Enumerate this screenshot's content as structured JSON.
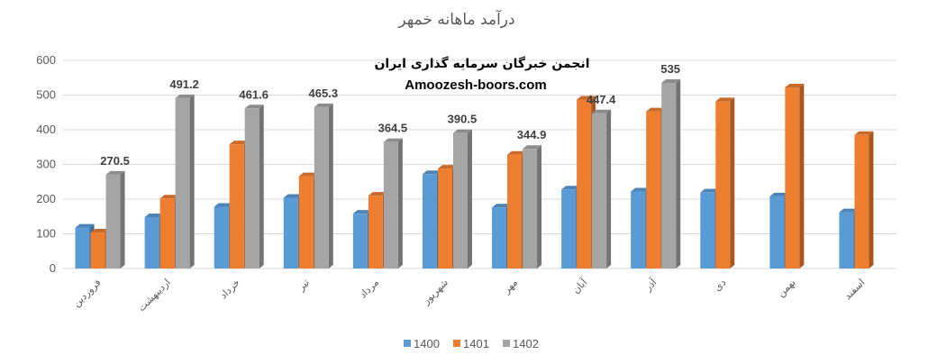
{
  "chart_data": {
    "type": "bar",
    "title": "درآمد ماهانه خمهر",
    "watermark_line1": "انجمن خبرگان سرمایه گذاری ایران",
    "watermark_line2": "Amoozesh-boors.com",
    "categories": [
      "فروردین",
      "اردیبهشت",
      "خرداد",
      "تیر",
      "مرداد",
      "شهریور",
      "مهر",
      "آبان",
      "آذر",
      "دی",
      "بهمن",
      "اسفند"
    ],
    "series": [
      {
        "name": "1400",
        "color": "#5B9BD5",
        "values": [
          118,
          148,
          178,
          204,
          158,
          272,
          176,
          228,
          222,
          219,
          208,
          162
        ]
      },
      {
        "name": "1401",
        "color": "#ED7D31",
        "values": [
          104,
          202,
          358,
          266,
          210,
          288,
          328,
          487,
          453,
          482,
          522,
          385
        ]
      },
      {
        "name": "1402",
        "color": "#A5A5A5",
        "values": [
          270.5,
          491.2,
          461.6,
          465.3,
          364.5,
          390.5,
          344.9,
          447.4,
          535,
          null,
          null,
          null
        ],
        "labels": [
          "270.5",
          "491.2",
          "461.6",
          "465.3",
          "364.5",
          "390.5",
          "344.9",
          "447.4",
          "535",
          "",
          "",
          ""
        ]
      }
    ],
    "ylim": [
      0,
      600
    ],
    "yticks": [
      "0",
      "100",
      "200",
      "300",
      "400",
      "500",
      "600"
    ],
    "grid": true,
    "legend_position": "bottom"
  }
}
